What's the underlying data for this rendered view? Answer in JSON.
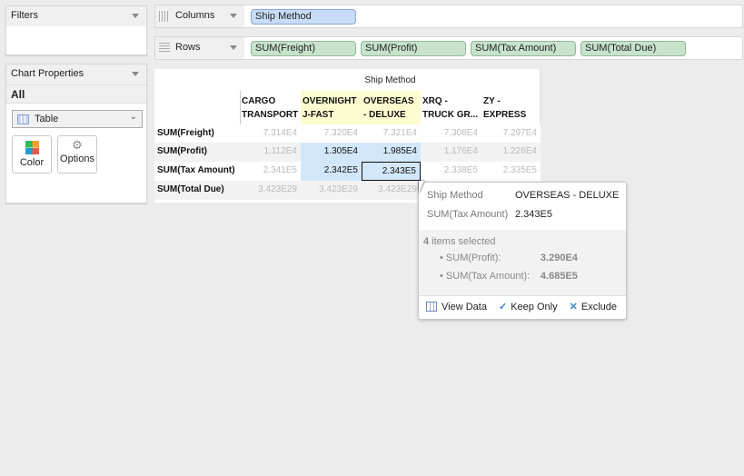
{
  "filters": {
    "title": "Filters"
  },
  "chart_properties": {
    "title": "Chart Properties",
    "section": "All",
    "chart_type": "Table",
    "buttons": [
      {
        "label": "Color",
        "icon": "color-grid-icon"
      },
      {
        "label": "Options",
        "icon": "gear-icon"
      }
    ]
  },
  "columns_shelf": {
    "label": "Columns",
    "pills": [
      "Ship Method"
    ]
  },
  "rows_shelf": {
    "label": "Rows",
    "pills": [
      "SUM(Freight)",
      "SUM(Profit)",
      "SUM(Tax Amount)",
      "SUM(Total Due)"
    ]
  },
  "table": {
    "column_group": "Ship Method",
    "columns": [
      [
        "CARGO",
        "TRANSPORT"
      ],
      [
        "OVERNIGHT",
        "J-FAST"
      ],
      [
        "OVERSEAS",
        "- DELUXE"
      ],
      [
        "XRQ -",
        "TRUCK GR..."
      ],
      [
        "ZY -",
        "EXPRESS"
      ]
    ],
    "rows": [
      {
        "label": "SUM(Freight)",
        "values": [
          "7.314E4",
          "7.320E4",
          "7.321E4",
          "7.308E4",
          "7.297E4"
        ]
      },
      {
        "label": "SUM(Profit)",
        "values": [
          "1.112E4",
          "1.305E4",
          "1.985E4",
          "1.176E4",
          "1.226E4"
        ]
      },
      {
        "label": "SUM(Tax Amount)",
        "values": [
          "2.341E5",
          "2.342E5",
          "2.343E5",
          "2.338E5",
          "2.335E5"
        ]
      },
      {
        "label": "SUM(Total Due)",
        "values": [
          "3.423E29",
          "3.423E29",
          "3.423E29",
          "",
          ""
        ]
      }
    ]
  },
  "tooltip": {
    "fields": [
      {
        "name": "Ship Method",
        "value": "OVERSEAS - DELUXE"
      },
      {
        "name": "SUM(Tax Amount)",
        "value": "2.343E5"
      }
    ],
    "selected_count": "4",
    "selected_text": " items selected",
    "summary": [
      {
        "name": "SUM(Profit):",
        "value": "3.290E4"
      },
      {
        "name": "SUM(Tax Amount):",
        "value": "4.685E5"
      }
    ],
    "actions": [
      "View Data",
      "Keep Only",
      "Exclude"
    ]
  },
  "colors": {
    "selected": "#d3e7fb",
    "highlight_header": "#fdfbd0"
  }
}
